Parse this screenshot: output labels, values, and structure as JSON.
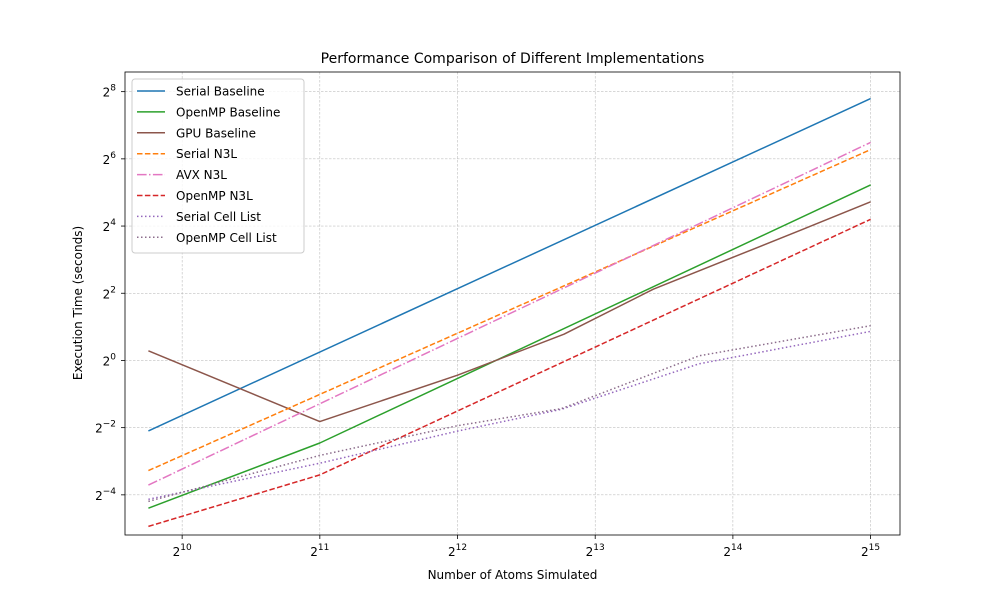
{
  "chart_data": {
    "type": "line",
    "title": "Performance Comparison of Different Implementations",
    "xlabel": "Number of Atoms Simulated",
    "ylabel": "Execution Time (seconds)",
    "xscale": "log2",
    "yscale": "log2",
    "xlim": [
      768,
      38000
    ],
    "ylim": [
      0.0273,
      384
    ],
    "x_ticks": [
      {
        "base": "2",
        "exp": "10",
        "value": 1024
      },
      {
        "base": "2",
        "exp": "11",
        "value": 2048
      },
      {
        "base": "2",
        "exp": "12",
        "value": 4096
      },
      {
        "base": "2",
        "exp": "13",
        "value": 8192
      },
      {
        "base": "2",
        "exp": "14",
        "value": 16384
      },
      {
        "base": "2",
        "exp": "15",
        "value": 32768
      }
    ],
    "y_ticks": [
      {
        "base": "2",
        "exp": "−4",
        "value": 0.0625
      },
      {
        "base": "2",
        "exp": "−2",
        "value": 0.25
      },
      {
        "base": "2",
        "exp": "0",
        "value": 1
      },
      {
        "base": "2",
        "exp": "2",
        "value": 4
      },
      {
        "base": "2",
        "exp": "4",
        "value": 16
      },
      {
        "base": "2",
        "exp": "6",
        "value": 64
      },
      {
        "base": "2",
        "exp": "8",
        "value": 256
      }
    ],
    "grid": true,
    "legend_position": "top-left",
    "series": [
      {
        "name": "Serial Baseline",
        "color": "#1f77b4",
        "dash": "solid",
        "x": [
          864,
          32768
        ],
        "y": [
          0.234,
          222
        ]
      },
      {
        "name": "OpenMP Baseline",
        "color": "#2ca02c",
        "dash": "solid",
        "x": [
          864,
          2048,
          32768
        ],
        "y": [
          0.0475,
          0.182,
          37.4
        ]
      },
      {
        "name": "GPU Baseline",
        "color": "#8c564b",
        "dash": "solid",
        "x": [
          864,
          2048,
          4096,
          7000,
          10976,
          23328,
          32768
        ],
        "y": [
          1.22,
          0.283,
          0.737,
          1.72,
          4.35,
          15.0,
          26.4
        ]
      },
      {
        "name": "Serial N3L",
        "color": "#ff7f0e",
        "dash": "dashed",
        "x": [
          864,
          32768
        ],
        "y": [
          0.103,
          77.4
        ]
      },
      {
        "name": "AVX N3L",
        "color": "#e377c2",
        "dash": "dashdot",
        "x": [
          864,
          32768
        ],
        "y": [
          0.0765,
          89.8
        ]
      },
      {
        "name": "OpenMP N3L",
        "color": "#d62728",
        "dash": "dashed",
        "x": [
          864,
          2048,
          32768
        ],
        "y": [
          0.0326,
          0.0943,
          18.4
        ]
      },
      {
        "name": "Serial Cell List",
        "color": "#9467bd",
        "dash": "dotted",
        "x": [
          864,
          2048,
          4096,
          6912,
          13824,
          32768
        ],
        "y": [
          0.057,
          0.12,
          0.233,
          0.365,
          0.933,
          1.82
        ]
      },
      {
        "name": "OpenMP Cell List",
        "color": "#8c6d8c",
        "dash": "dotted",
        "x": [
          864,
          2048,
          4096,
          6912,
          13824,
          32768
        ],
        "y": [
          0.0546,
          0.141,
          0.26,
          0.37,
          1.1,
          2.05
        ]
      }
    ]
  }
}
